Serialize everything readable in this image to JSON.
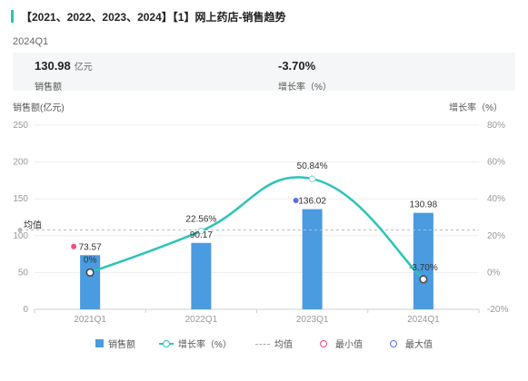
{
  "header": {
    "title": "【2021、2022、2023、2024】【1】网上药店-销售趋势"
  },
  "period": "2024Q1",
  "kpis": {
    "sales_value": "130.98",
    "sales_unit": "亿元",
    "sales_label": "销售额",
    "growth_value": "-3.70%",
    "growth_label": "增长率（%）"
  },
  "axes": {
    "left_title": "销售额(亿元)",
    "right_title": "增长率（%）",
    "left_ticks": [
      "250",
      "200",
      "150",
      "100",
      "50",
      "0"
    ],
    "right_ticks": [
      "80%",
      "60%",
      "40%",
      "20%",
      "0%",
      "-20%"
    ]
  },
  "avg_label": "均值",
  "legend": {
    "sales": "销售额",
    "growth": "增长率（%）",
    "avg": "均值",
    "min": "最小值",
    "max": "最大值"
  },
  "colors": {
    "bar": "#4a9be0",
    "line": "#2bc3b8",
    "min": "#ee4d7c",
    "max": "#5f6de0",
    "accent": "#2bc3b8"
  },
  "chart_data": {
    "type": "bar",
    "categories": [
      "2021Q1",
      "2022Q1",
      "2023Q1",
      "2024Q1"
    ],
    "series": [
      {
        "name": "销售额",
        "type": "bar",
        "axis": "left",
        "values": [
          73.57,
          90.17,
          136.02,
          130.98
        ],
        "labels": [
          "73.57",
          "90.17",
          "136.02",
          "130.98"
        ]
      },
      {
        "name": "增长率（%）",
        "type": "line",
        "axis": "right",
        "values": [
          0,
          22.56,
          50.84,
          -3.7
        ],
        "labels": [
          "0%",
          "22.56%",
          "50.84%",
          "-3.70%"
        ]
      }
    ],
    "average": 107.69,
    "min_category": "2021Q1",
    "max_category": "2023Q1",
    "ylim_left": [
      0,
      250
    ],
    "ylim_right": [
      -20,
      80
    ],
    "grid": true,
    "legend_position": "bottom"
  }
}
